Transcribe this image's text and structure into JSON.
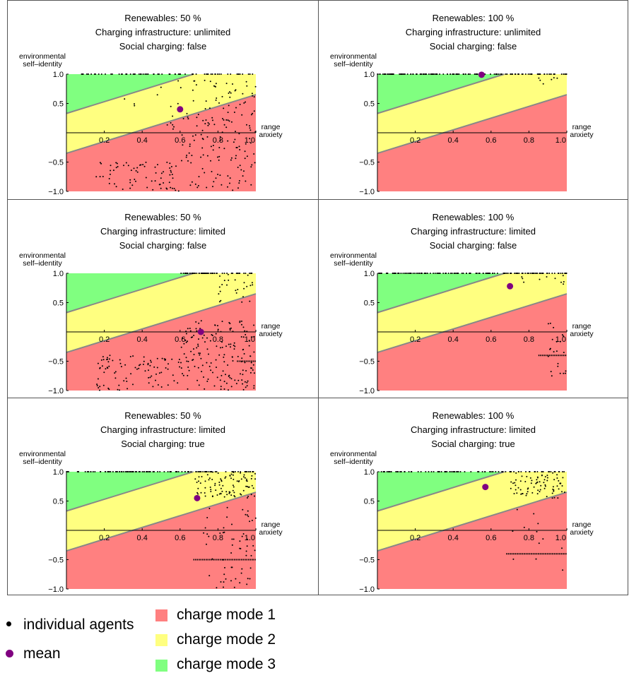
{
  "chart_data": [
    {
      "type": "scatter",
      "title_lines": [
        "Renewables: 50 %",
        "Charging infrastructure: unlimited",
        "Social charging: false"
      ],
      "xlabel": "range anxiety",
      "ylabel": "environmental self-identity",
      "xlim": [
        0,
        1
      ],
      "ylim": [
        -1,
        1
      ],
      "mean": [
        0.6,
        0.4
      ],
      "seed": 11,
      "agents": [
        {
          "x": [
            0.05,
            1.0
          ],
          "y": [
            1,
            1
          ],
          "n": 70
        },
        {
          "x": [
            0.55,
            1.0
          ],
          "y": [
            -1,
            0.9
          ],
          "n": 180
        },
        {
          "x": [
            0.15,
            0.55
          ],
          "y": [
            -1,
            -0.5
          ],
          "n": 60
        },
        {
          "x": [
            0.3,
            0.6
          ],
          "y": [
            0.1,
            0.8
          ],
          "n": 8
        }
      ],
      "hlines": []
    },
    {
      "type": "scatter",
      "title_lines": [
        "Renewables: 100 %",
        "Charging infrastructure: unlimited",
        "Social charging: false"
      ],
      "xlabel": "range anxiety",
      "ylabel": "environmental self-identity",
      "xlim": [
        0,
        1
      ],
      "ylim": [
        -1,
        1
      ],
      "mean": [
        0.55,
        0.99
      ],
      "seed": 23,
      "agents": [
        {
          "x": [
            0.0,
            1.0
          ],
          "y": [
            1,
            1
          ],
          "n": 140
        },
        {
          "x": [
            0.85,
            1.0
          ],
          "y": [
            0.75,
            0.98
          ],
          "n": 6
        }
      ],
      "hlines": []
    },
    {
      "type": "scatter",
      "title_lines": [
        "Renewables: 50 %",
        "Charging infrastructure: limited",
        "Social charging: false"
      ],
      "xlabel": "range anxiety",
      "ylabel": "environmental self-identity",
      "xlim": [
        0,
        1
      ],
      "ylim": [
        -1,
        1
      ],
      "mean": [
        0.71,
        0.0
      ],
      "seed": 37,
      "agents": [
        {
          "x": [
            0.6,
            1.0
          ],
          "y": [
            1,
            1
          ],
          "n": 60
        },
        {
          "x": [
            0.8,
            1.0
          ],
          "y": [
            0.5,
            0.98
          ],
          "n": 25
        },
        {
          "x": [
            0.6,
            1.0
          ],
          "y": [
            -1,
            0.2
          ],
          "n": 170
        },
        {
          "x": [
            0.15,
            0.6
          ],
          "y": [
            -1,
            -0.4
          ],
          "n": 90
        }
      ],
      "hlines": [
        {
          "x": [
            0.9,
            1.0
          ],
          "y": -0.5
        }
      ]
    },
    {
      "type": "scatter",
      "title_lines": [
        "Renewables: 100 %",
        "Charging infrastructure: limited",
        "Social charging: false"
      ],
      "xlabel": "range anxiety",
      "ylabel": "environmental self-identity",
      "xlim": [
        0,
        1
      ],
      "ylim": [
        -1,
        1
      ],
      "mean": [
        0.7,
        0.78
      ],
      "seed": 53,
      "agents": [
        {
          "x": [
            0.0,
            1.0
          ],
          "y": [
            1,
            1
          ],
          "n": 140
        },
        {
          "x": [
            0.75,
            1.0
          ],
          "y": [
            0.8,
            0.98
          ],
          "n": 10
        },
        {
          "x": [
            0.9,
            1.0
          ],
          "y": [
            -0.8,
            0.2
          ],
          "n": 22
        }
      ],
      "hlines": [
        {
          "x": [
            0.85,
            1.0
          ],
          "y": -0.4
        }
      ]
    },
    {
      "type": "scatter",
      "title_lines": [
        "Renewables: 50 %",
        "Charging infrastructure: limited",
        "Social charging: true"
      ],
      "xlabel": "range anxiety",
      "ylabel": "environmental self-identity",
      "xlim": [
        0,
        1
      ],
      "ylim": [
        -1,
        1
      ],
      "mean": [
        0.69,
        0.55
      ],
      "seed": 71,
      "agents": [
        {
          "x": [
            0.0,
            1.0
          ],
          "y": [
            1,
            1
          ],
          "n": 120
        },
        {
          "x": [
            0.68,
            1.0
          ],
          "y": [
            0.55,
            1.0
          ],
          "n": 90
        },
        {
          "x": [
            0.72,
            1.0
          ],
          "y": [
            -1,
            0.4
          ],
          "n": 60
        }
      ],
      "hlines": [
        {
          "x": [
            0.67,
            1.0
          ],
          "y": -0.5
        }
      ]
    },
    {
      "type": "scatter",
      "title_lines": [
        "Renewables: 100 %",
        "Charging infrastructure: limited",
        "Social charging: true"
      ],
      "xlabel": "range anxiety",
      "ylabel": "environmental self-identity",
      "xlim": [
        0,
        1
      ],
      "ylim": [
        -1,
        1
      ],
      "mean": [
        0.57,
        0.74
      ],
      "seed": 89,
      "agents": [
        {
          "x": [
            0.0,
            1.0
          ],
          "y": [
            1,
            1
          ],
          "n": 90
        },
        {
          "x": [
            0.7,
            1.0
          ],
          "y": [
            0.55,
            0.98
          ],
          "n": 75
        },
        {
          "x": [
            0.7,
            1.0
          ],
          "y": [
            -0.7,
            0.4
          ],
          "n": 12
        }
      ],
      "hlines": [
        {
          "x": [
            0.68,
            1.0
          ],
          "y": -0.4
        }
      ]
    }
  ],
  "regions": {
    "lower_line": {
      "y_at_x0": -0.35,
      "y_at_x1": 0.65
    },
    "upper_line": {
      "y_at_x0": 0.33,
      "y_at_x1": 1.33
    },
    "colors": {
      "mode1": "#ff8080",
      "mode2": "#ffff80",
      "mode3": "#80ff80",
      "boundary": "#888888",
      "mean": "#800080"
    }
  },
  "axis": {
    "x_ticks": [
      "0.2",
      "0.4",
      "0.6",
      "0.8",
      "1.0"
    ],
    "y_ticks": [
      "1.0",
      "0.5",
      "−0.5",
      "−1.0"
    ],
    "x_label_lines": [
      "range",
      "anxiety"
    ],
    "y_label_lines": [
      "environmental",
      "self–identity"
    ]
  },
  "legend": {
    "agents_label": "individual agents",
    "mean_label": "mean",
    "mode1_label": "charge mode 1",
    "mode2_label": "charge mode 2",
    "mode3_label": "charge mode 3"
  }
}
